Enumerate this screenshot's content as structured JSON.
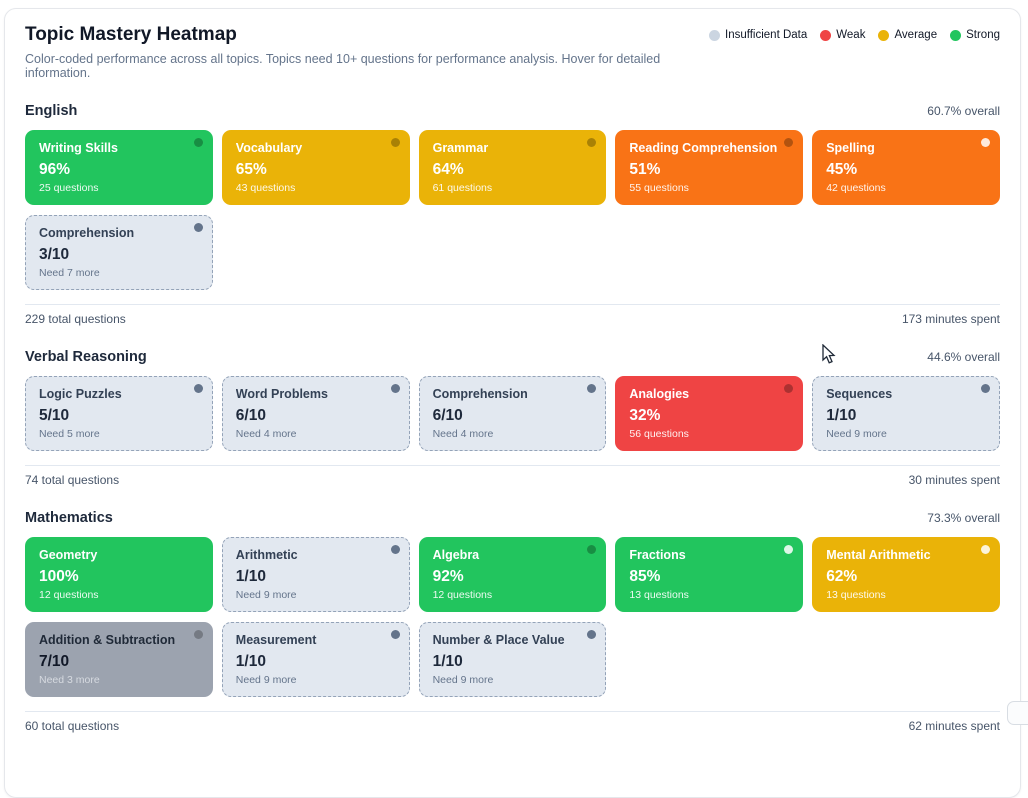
{
  "header": {
    "title": "Topic Mastery Heatmap",
    "subtitle": "Color-coded performance across all topics. Topics need 10+ questions for performance analysis. Hover for detailed information."
  },
  "legend": [
    {
      "label": "Insufficient Data",
      "icon": "insufficient-data-dot-icon",
      "color": "#cbd5e1"
    },
    {
      "label": "Weak",
      "icon": "weak-dot-icon",
      "color": "#ef4444"
    },
    {
      "label": "Average",
      "icon": "average-dot-icon",
      "color": "#eab308"
    },
    {
      "label": "Strong",
      "icon": "strong-dot-icon",
      "color": "#22c55e"
    }
  ],
  "state_colors": {
    "strong": "#22c55e",
    "average": "#eab308",
    "weak-orange": "#f97316",
    "weak": "#ef4444",
    "insufficient": "#e2e8f0",
    "insufficient-solid": "#9ca3af"
  },
  "sections": [
    {
      "name": "English",
      "overall": "60.7% overall",
      "total": "229 total questions",
      "time": "173 minutes spent",
      "cards": [
        {
          "title": "Writing Skills",
          "value": "96%",
          "sub": "25 questions",
          "state": "strong",
          "dot": "dark"
        },
        {
          "title": "Vocabulary",
          "value": "65%",
          "sub": "43 questions",
          "state": "average",
          "dot": "dark"
        },
        {
          "title": "Grammar",
          "value": "64%",
          "sub": "61 questions",
          "state": "average",
          "dot": "dark"
        },
        {
          "title": "Reading Comprehension",
          "value": "51%",
          "sub": "55 questions",
          "state": "weak-orange",
          "dot": "dark"
        },
        {
          "title": "Spelling",
          "value": "45%",
          "sub": "42 questions",
          "state": "weak-orange",
          "dot": "light"
        },
        {
          "title": "Comprehension",
          "value": "3/10",
          "sub": "Need 7 more",
          "state": "insufficient",
          "dot": "dark"
        }
      ]
    },
    {
      "name": "Verbal Reasoning",
      "overall": "44.6% overall",
      "total": "74 total questions",
      "time": "30 minutes spent",
      "cards": [
        {
          "title": "Logic Puzzles",
          "value": "5/10",
          "sub": "Need 5 more",
          "state": "insufficient",
          "dot": "dark"
        },
        {
          "title": "Word Problems",
          "value": "6/10",
          "sub": "Need 4 more",
          "state": "insufficient",
          "dot": "dark"
        },
        {
          "title": "Comprehension",
          "value": "6/10",
          "sub": "Need 4 more",
          "state": "insufficient",
          "dot": "dark"
        },
        {
          "title": "Analogies",
          "value": "32%",
          "sub": "56 questions",
          "state": "weak",
          "dot": "dark"
        },
        {
          "title": "Sequences",
          "value": "1/10",
          "sub": "Need 9 more",
          "state": "insufficient",
          "dot": "dark"
        }
      ]
    },
    {
      "name": "Mathematics",
      "overall": "73.3% overall",
      "total": "60 total questions",
      "time": "62 minutes spent",
      "cards": [
        {
          "title": "Geometry",
          "value": "100%",
          "sub": "12 questions",
          "state": "strong",
          "dot": "none"
        },
        {
          "title": "Arithmetic",
          "value": "1/10",
          "sub": "Need 9 more",
          "state": "insufficient",
          "dot": "dark"
        },
        {
          "title": "Algebra",
          "value": "92%",
          "sub": "12 questions",
          "state": "strong",
          "dot": "dark"
        },
        {
          "title": "Fractions",
          "value": "85%",
          "sub": "13 questions",
          "state": "strong",
          "dot": "light"
        },
        {
          "title": "Mental Arithmetic",
          "value": "62%",
          "sub": "13 questions",
          "state": "average",
          "dot": "light"
        },
        {
          "title": "Addition & Subtraction",
          "value": "7/10",
          "sub": "Need 3 more",
          "state": "insufficient-solid",
          "dot": "dark"
        },
        {
          "title": "Measurement",
          "value": "1/10",
          "sub": "Need 9 more",
          "state": "insufficient",
          "dot": "dark"
        },
        {
          "title": "Number & Place Value",
          "value": "1/10",
          "sub": "Need 9 more",
          "state": "insufficient",
          "dot": "dark"
        }
      ]
    }
  ]
}
